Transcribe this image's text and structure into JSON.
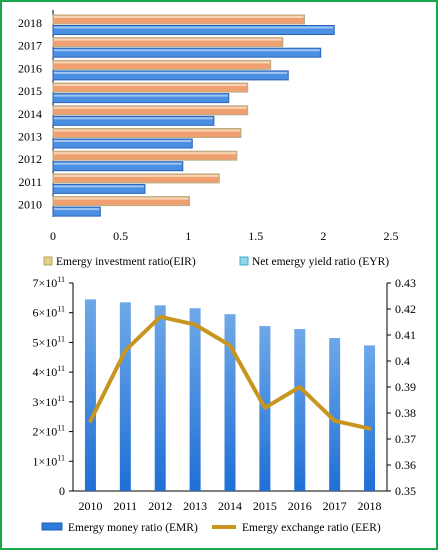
{
  "chart_data": [
    {
      "type": "bar",
      "orientation": "horizontal",
      "categories": [
        "2010",
        "2011",
        "2012",
        "2013",
        "2014",
        "2015",
        "2016",
        "2017",
        "2018"
      ],
      "series": [
        {
          "name": "Emergy investment ratio(EIR)",
          "values": [
            1.01,
            1.23,
            1.36,
            1.39,
            1.44,
            1.44,
            1.61,
            1.7,
            1.86
          ],
          "color": "#f0a070"
        },
        {
          "name": "Net emergy yield ratio (EYR)",
          "values": [
            0.35,
            0.68,
            0.96,
            1.03,
            1.19,
            1.3,
            1.74,
            1.98,
            2.08
          ],
          "color": "#4a90e2"
        }
      ],
      "xlim": [
        0,
        2.5
      ],
      "x_ticks": [
        "0",
        "0.5",
        "1",
        "1.5",
        "2",
        "2.5"
      ],
      "legend_position": "bottom",
      "grid": false
    },
    {
      "type": "bar",
      "categories": [
        "2010",
        "2011",
        "2012",
        "2013",
        "2014",
        "2015",
        "2016",
        "2017",
        "2018"
      ],
      "series": [
        {
          "name": "Emergy money ratio (EMR)",
          "type": "bar",
          "axis": "left",
          "values": [
            645000000000.0,
            635000000000.0,
            625000000000.0,
            615000000000.0,
            595000000000.0,
            555000000000.0,
            545000000000.0,
            515000000000.0,
            490000000000.0
          ],
          "color": "#4d8fe0"
        },
        {
          "name": "Emergy exchange ratio (EER)",
          "type": "line",
          "axis": "right",
          "values": [
            0.377,
            0.404,
            0.417,
            0.414,
            0.406,
            0.382,
            0.39,
            0.377,
            0.374
          ],
          "color": "#c8961e"
        }
      ],
      "ylim_left": [
        0,
        700000000000.0
      ],
      "ylim_right": [
        0.35,
        0.43
      ],
      "y_ticks_left": [
        {
          "base": "0",
          "exp": ""
        },
        {
          "base": "1×10",
          "exp": "11"
        },
        {
          "base": "2×10",
          "exp": "11"
        },
        {
          "base": "3×10",
          "exp": "11"
        },
        {
          "base": "4×10",
          "exp": "11"
        },
        {
          "base": "5×10",
          "exp": "11"
        },
        {
          "base": "6×10",
          "exp": "11"
        },
        {
          "base": "7×10",
          "exp": "11"
        }
      ],
      "y_ticks_right": [
        "0.35",
        "0.36",
        "0.37",
        "0.38",
        "0.39",
        "0.4",
        "0.41",
        "0.42",
        "0.43"
      ],
      "legend_position": "bottom",
      "grid": false
    }
  ]
}
